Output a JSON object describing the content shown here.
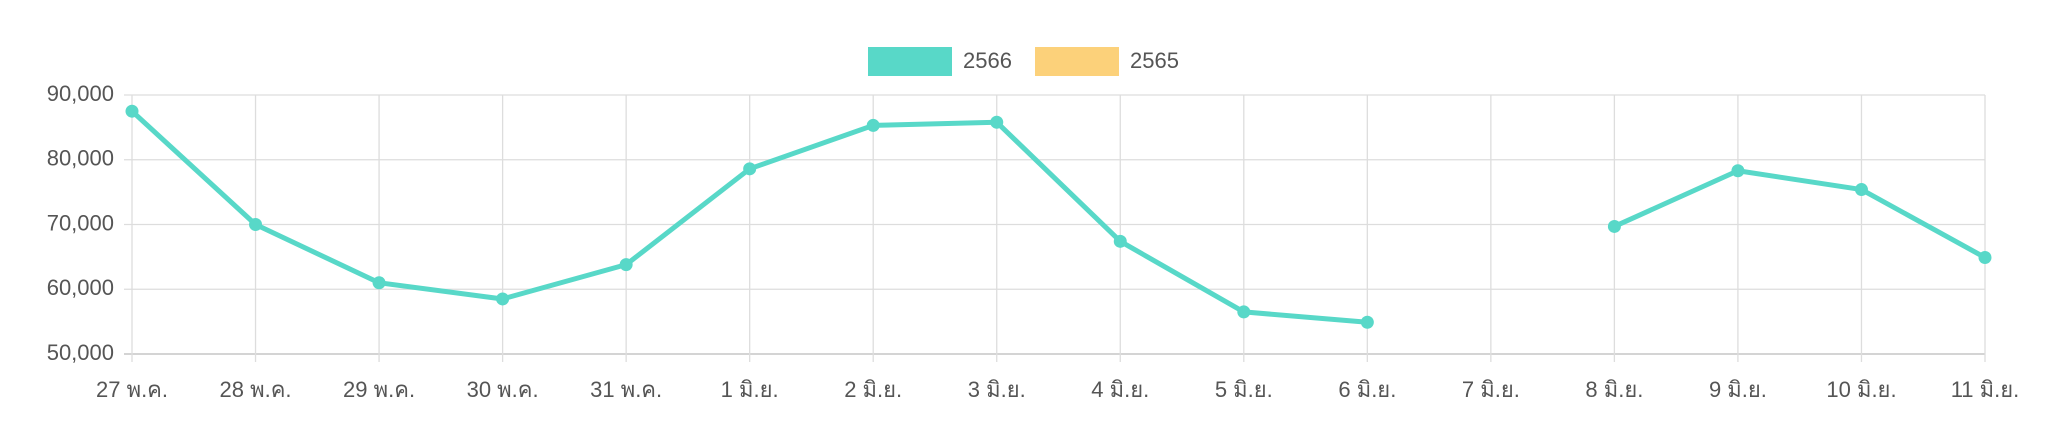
{
  "chart_data": {
    "type": "line",
    "categories": [
      "27 พ.ค.",
      "28 พ.ค.",
      "29 พ.ค.",
      "30 พ.ค.",
      "31 พ.ค.",
      "1 มิ.ย.",
      "2 มิ.ย.",
      "3 มิ.ย.",
      "4 มิ.ย.",
      "5 มิ.ย.",
      "6 มิ.ย.",
      "7 มิ.ย.",
      "8 มิ.ย.",
      "9 มิ.ย.",
      "10 มิ.ย.",
      "11 มิ.ย."
    ],
    "series": [
      {
        "name": "2566",
        "color": "#58d8c8",
        "values": [
          87500,
          70000,
          61000,
          58500,
          63800,
          78600,
          85300,
          85800,
          67400,
          56500,
          54900,
          null,
          69700,
          78300,
          75400,
          64900
        ]
      },
      {
        "name": "2565",
        "color": "#fcd17a",
        "values": [
          null,
          null,
          null,
          null,
          null,
          null,
          null,
          null,
          null,
          null,
          null,
          null,
          null,
          null,
          null,
          null
        ]
      }
    ],
    "ylim": [
      50000,
      90000
    ],
    "yticks": [
      {
        "value": 50000,
        "label": "50,000"
      },
      {
        "value": 60000,
        "label": "60,000"
      },
      {
        "value": 70000,
        "label": "70,000"
      },
      {
        "value": 80000,
        "label": "80,000"
      },
      {
        "value": 90000,
        "label": "90,000"
      }
    ],
    "grid": true,
    "legend": "top"
  }
}
